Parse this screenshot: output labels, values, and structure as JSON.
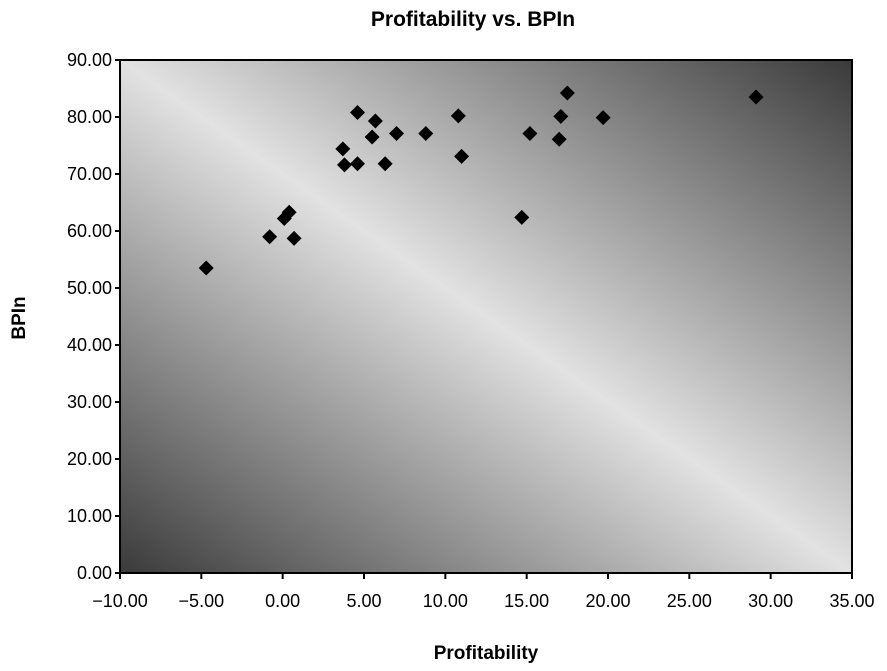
{
  "chart_data": {
    "type": "scatter",
    "title": "Profitability vs. BPIn",
    "xlabel": "Profitability",
    "ylabel": "BPIn",
    "xlim": [
      -10,
      35
    ],
    "ylim": [
      0,
      90
    ],
    "x_ticks": [
      "−10.00",
      "−5.00",
      "0.00",
      "5.00",
      "10.00",
      "15.00",
      "20.00",
      "25.00",
      "30.00",
      "35.00"
    ],
    "y_ticks": [
      "0.00",
      "10.00",
      "20.00",
      "30.00",
      "40.00",
      "50.00",
      "60.00",
      "70.00",
      "80.00",
      "90.00"
    ],
    "grid": false,
    "legend": "none",
    "marker": "diamond",
    "marker_color": "#000000",
    "background": "diagonal gradient, dark corners, light centre band",
    "series": [
      {
        "points": [
          {
            "x": -4.7,
            "y": 53.5
          },
          {
            "x": -0.8,
            "y": 59.0
          },
          {
            "x": 0.1,
            "y": 62.2
          },
          {
            "x": 0.4,
            "y": 63.3
          },
          {
            "x": 0.7,
            "y": 58.7
          },
          {
            "x": 3.7,
            "y": 74.4
          },
          {
            "x": 3.8,
            "y": 71.6
          },
          {
            "x": 4.6,
            "y": 71.8
          },
          {
            "x": 4.6,
            "y": 80.8
          },
          {
            "x": 5.5,
            "y": 76.5
          },
          {
            "x": 5.7,
            "y": 79.3
          },
          {
            "x": 6.3,
            "y": 71.8
          },
          {
            "x": 7.0,
            "y": 77.1
          },
          {
            "x": 8.8,
            "y": 77.1
          },
          {
            "x": 10.8,
            "y": 80.2
          },
          {
            "x": 11.0,
            "y": 73.1
          },
          {
            "x": 14.7,
            "y": 62.4
          },
          {
            "x": 15.2,
            "y": 77.1
          },
          {
            "x": 17.0,
            "y": 76.1
          },
          {
            "x": 17.1,
            "y": 80.1
          },
          {
            "x": 17.5,
            "y": 84.2
          },
          {
            "x": 19.7,
            "y": 79.9
          },
          {
            "x": 29.1,
            "y": 83.5
          }
        ]
      }
    ]
  }
}
